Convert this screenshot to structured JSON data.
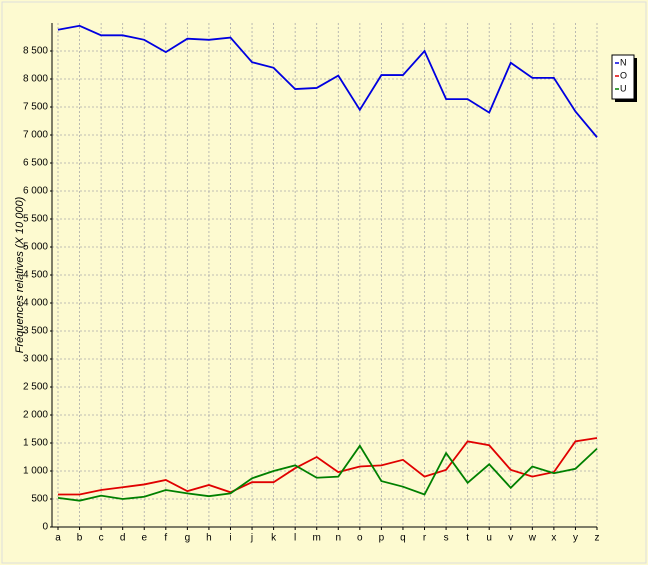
{
  "chart_data": {
    "type": "line",
    "y_label": "Fréquences relatives (X 10 000)",
    "categories": [
      "a",
      "b",
      "c",
      "d",
      "e",
      "f",
      "g",
      "h",
      "i",
      "j",
      "k",
      "l",
      "m",
      "n",
      "o",
      "p",
      "q",
      "r",
      "s",
      "t",
      "u",
      "v",
      "w",
      "x",
      "y",
      "z"
    ],
    "series": [
      {
        "name": "N",
        "color": "#0000e0",
        "values": [
          8880,
          8950,
          8780,
          8780,
          8700,
          8480,
          8720,
          8700,
          8740,
          8300,
          8200,
          7820,
          7840,
          8060,
          7450,
          8070,
          8070,
          8500,
          7640,
          7640,
          7400,
          8290,
          8020,
          8020,
          7420,
          6960
        ]
      },
      {
        "name": "O",
        "color": "#e00000",
        "values": [
          580,
          580,
          660,
          710,
          760,
          840,
          640,
          750,
          620,
          800,
          800,
          1050,
          1250,
          980,
          1080,
          1100,
          1200,
          900,
          1020,
          1530,
          1460,
          1020,
          900,
          980,
          1530,
          1590
        ]
      },
      {
        "name": "U",
        "color": "#008000",
        "values": [
          520,
          470,
          560,
          500,
          540,
          660,
          600,
          550,
          600,
          870,
          1000,
          1100,
          880,
          900,
          1450,
          820,
          720,
          580,
          1320,
          790,
          1120,
          700,
          1080,
          960,
          1040,
          1400
        ]
      }
    ],
    "ylim": [
      0,
      9000
    ],
    "yticks": [
      0,
      500,
      {
        "value": 1000,
        "label": "1 000"
      },
      {
        "value": 1500,
        "label": "1 500"
      },
      {
        "value": 2000,
        "label": "2 000"
      },
      {
        "value": 2500,
        "label": "2 500"
      },
      {
        "value": 3000,
        "label": "3 000"
      },
      {
        "value": 3500,
        "label": "3 500"
      },
      {
        "value": 4000,
        "label": "4 000"
      },
      {
        "value": 4500,
        "label": "4 500"
      },
      {
        "value": 5000,
        "label": "5 000"
      },
      {
        "value": 5500,
        "label": "5 500"
      },
      {
        "value": 6000,
        "label": "6 000"
      },
      {
        "value": 6500,
        "label": "6 500"
      },
      {
        "value": 7000,
        "label": "7 000"
      },
      {
        "value": 7500,
        "label": "7 500"
      },
      {
        "value": 8000,
        "label": "8 000"
      },
      {
        "value": 8500,
        "label": "8 500"
      }
    ],
    "grid": true
  }
}
